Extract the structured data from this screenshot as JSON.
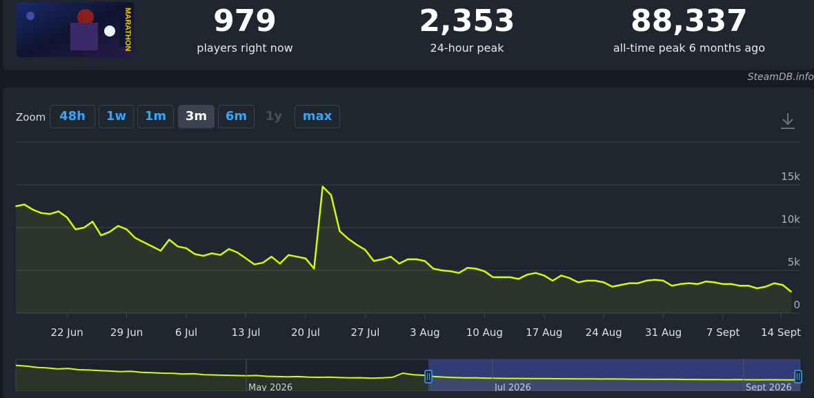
{
  "stats": [
    {
      "value": "979",
      "label": "players right now"
    },
    {
      "value": "2,353",
      "label": "24-hour peak"
    },
    {
      "value": "88,337",
      "label": "all-time peak 6 months ago"
    }
  ],
  "credit": "SteamDB.info",
  "zoom": {
    "label": "Zoom",
    "buttons": [
      {
        "label": "48h",
        "state": "normal"
      },
      {
        "label": "1w",
        "state": "normal"
      },
      {
        "label": "1m",
        "state": "normal"
      },
      {
        "label": "3m",
        "state": "active"
      },
      {
        "label": "6m",
        "state": "normal"
      },
      {
        "label": "1y",
        "state": "disabled"
      },
      {
        "label": "max",
        "state": "normal"
      }
    ]
  },
  "colors": {
    "line": "#d4ff00",
    "background": "#1f2630",
    "grid": "#3a4451",
    "accent": "#2ea8ff"
  },
  "chart_data": {
    "type": "line",
    "series": [
      {
        "values": [
          12500,
          12700,
          12100,
          11700,
          11600,
          11900,
          11200,
          9800,
          10000,
          10700,
          9100,
          9500,
          10200,
          9800,
          8800,
          8300,
          7800,
          7300,
          8600,
          7800,
          7600,
          6900,
          6700,
          7000,
          6800,
          7500,
          7100,
          6400,
          5700,
          5900,
          6600,
          5800,
          6800,
          6600,
          6400,
          5200,
          14800,
          13800,
          9600,
          8700,
          8000,
          7400,
          6100,
          6300,
          6600,
          5800,
          6300,
          6300,
          6100,
          5200,
          5000,
          4900,
          4700,
          5300,
          5200,
          4900,
          4200,
          4200,
          4200,
          4000,
          4500,
          4700,
          4400,
          3800,
          4400,
          4100,
          3600,
          3800,
          3800,
          3600,
          3100,
          3300,
          3500,
          3500,
          3800,
          3900,
          3800,
          3200,
          3400,
          3500,
          3400,
          3700,
          3600,
          3400,
          3400,
          3200,
          3200,
          2900,
          3100,
          3500,
          3300,
          2500
        ]
      }
    ],
    "x_start": "2025-06-16",
    "x_step_days": 1,
    "x_ticks": [
      "22 Jun",
      "29 Jun",
      "6 Jul",
      "13 Jul",
      "20 Jul",
      "27 Jul",
      "3 Aug",
      "10 Aug",
      "17 Aug",
      "24 Aug",
      "31 Aug",
      "7 Sept",
      "14 Sept"
    ],
    "y_ticks": [
      "0",
      "5k",
      "10k",
      "15k"
    ],
    "ylim": [
      0,
      15000
    ],
    "grid": true,
    "navigator": {
      "labels": [
        "May 2026",
        "Jul 2026",
        "Sept 2026"
      ],
      "values": [
        88000,
        85000,
        80000,
        78000,
        74000,
        76000,
        71000,
        70000,
        68000,
        66000,
        64000,
        65000,
        61000,
        60000,
        58000,
        57000,
        55000,
        56000,
        52000,
        51000,
        50000,
        49000,
        48000,
        49000,
        46000,
        45000,
        44000,
        45000,
        43000,
        42000,
        43000,
        41000,
        40000,
        40500,
        39000,
        40000,
        42000,
        58000,
        52000,
        50000,
        45000,
        43000,
        41000,
        40000,
        40000,
        39000,
        38500,
        38000,
        38000,
        37500,
        37000,
        37000,
        36500,
        36500,
        36000,
        36000,
        35500,
        36000,
        35500,
        35000,
        35000,
        34500,
        35000,
        34500,
        34000,
        34000,
        33500,
        33500,
        33000,
        33500,
        33000,
        32500,
        33000,
        32500,
        32000,
        32000
      ]
    }
  }
}
